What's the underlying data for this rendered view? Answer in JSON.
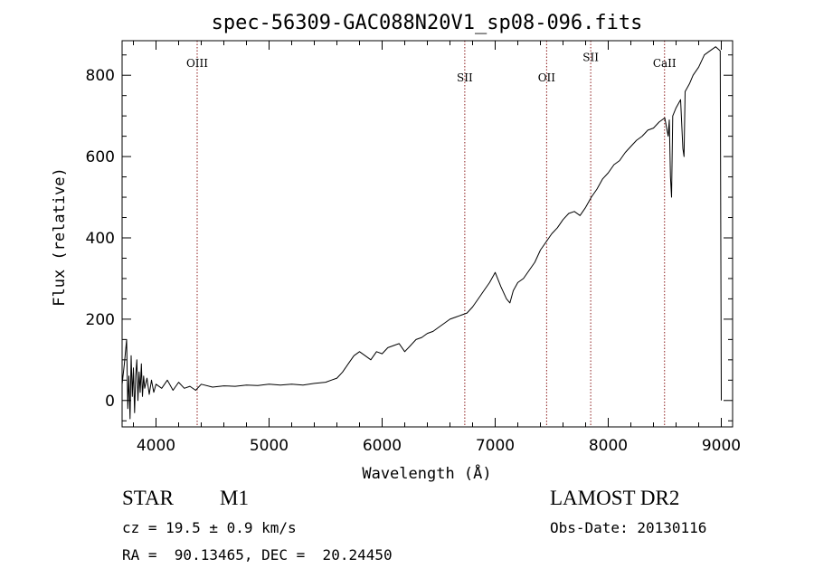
{
  "chart_data": {
    "type": "line",
    "title": "spec-56309-GAC088N20V1_sp08-096.fits",
    "xlabel": "Wavelength (Å)",
    "ylabel": "Flux (relative)",
    "xlim": [
      3700,
      9100
    ],
    "ylim": [
      -65,
      885
    ],
    "x_ticks": [
      4000,
      5000,
      6000,
      7000,
      8000,
      9000
    ],
    "y_ticks": [
      0,
      200,
      400,
      600,
      800
    ],
    "grid": false,
    "series": [
      {
        "color": "#000000",
        "points": [
          [
            3700,
            40
          ],
          [
            3720,
            90
          ],
          [
            3740,
            150
          ],
          [
            3750,
            -20
          ],
          [
            3760,
            60
          ],
          [
            3770,
            -45
          ],
          [
            3780,
            110
          ],
          [
            3790,
            10
          ],
          [
            3800,
            80
          ],
          [
            3810,
            -30
          ],
          [
            3820,
            60
          ],
          [
            3830,
            100
          ],
          [
            3840,
            0
          ],
          [
            3850,
            70
          ],
          [
            3860,
            20
          ],
          [
            3870,
            90
          ],
          [
            3880,
            10
          ],
          [
            3890,
            60
          ],
          [
            3900,
            30
          ],
          [
            3920,
            55
          ],
          [
            3940,
            15
          ],
          [
            3960,
            50
          ],
          [
            3980,
            20
          ],
          [
            4000,
            40
          ],
          [
            4050,
            30
          ],
          [
            4100,
            50
          ],
          [
            4150,
            25
          ],
          [
            4200,
            45
          ],
          [
            4250,
            30
          ],
          [
            4300,
            35
          ],
          [
            4350,
            25
          ],
          [
            4400,
            40
          ],
          [
            4500,
            33
          ],
          [
            4600,
            36
          ],
          [
            4700,
            35
          ],
          [
            4800,
            38
          ],
          [
            4900,
            37
          ],
          [
            5000,
            40
          ],
          [
            5100,
            38
          ],
          [
            5200,
            40
          ],
          [
            5300,
            38
          ],
          [
            5400,
            42
          ],
          [
            5500,
            45
          ],
          [
            5550,
            50
          ],
          [
            5600,
            55
          ],
          [
            5650,
            70
          ],
          [
            5700,
            90
          ],
          [
            5750,
            110
          ],
          [
            5800,
            120
          ],
          [
            5850,
            110
          ],
          [
            5900,
            100
          ],
          [
            5950,
            120
          ],
          [
            6000,
            115
          ],
          [
            6050,
            130
          ],
          [
            6100,
            135
          ],
          [
            6150,
            140
          ],
          [
            6200,
            120
          ],
          [
            6250,
            135
          ],
          [
            6300,
            150
          ],
          [
            6350,
            155
          ],
          [
            6400,
            165
          ],
          [
            6450,
            170
          ],
          [
            6500,
            180
          ],
          [
            6550,
            190
          ],
          [
            6600,
            200
          ],
          [
            6650,
            205
          ],
          [
            6700,
            210
          ],
          [
            6750,
            215
          ],
          [
            6800,
            230
          ],
          [
            6850,
            250
          ],
          [
            6900,
            270
          ],
          [
            6950,
            290
          ],
          [
            7000,
            315
          ],
          [
            7050,
            280
          ],
          [
            7100,
            250
          ],
          [
            7130,
            240
          ],
          [
            7160,
            270
          ],
          [
            7200,
            290
          ],
          [
            7250,
            300
          ],
          [
            7300,
            320
          ],
          [
            7350,
            340
          ],
          [
            7400,
            370
          ],
          [
            7450,
            390
          ],
          [
            7500,
            410
          ],
          [
            7550,
            425
          ],
          [
            7600,
            445
          ],
          [
            7650,
            460
          ],
          [
            7700,
            465
          ],
          [
            7750,
            455
          ],
          [
            7800,
            475
          ],
          [
            7850,
            500
          ],
          [
            7900,
            520
          ],
          [
            7950,
            545
          ],
          [
            8000,
            560
          ],
          [
            8050,
            580
          ],
          [
            8100,
            590
          ],
          [
            8150,
            610
          ],
          [
            8200,
            625
          ],
          [
            8250,
            640
          ],
          [
            8300,
            650
          ],
          [
            8350,
            665
          ],
          [
            8400,
            670
          ],
          [
            8450,
            685
          ],
          [
            8500,
            695
          ],
          [
            8530,
            650
          ],
          [
            8540,
            690
          ],
          [
            8550,
            550
          ],
          [
            8560,
            500
          ],
          [
            8570,
            700
          ],
          [
            8600,
            720
          ],
          [
            8640,
            740
          ],
          [
            8660,
            620
          ],
          [
            8670,
            600
          ],
          [
            8680,
            760
          ],
          [
            8720,
            780
          ],
          [
            8750,
            800
          ],
          [
            8800,
            820
          ],
          [
            8850,
            850
          ],
          [
            8900,
            860
          ],
          [
            8950,
            870
          ],
          [
            8990,
            860
          ],
          [
            9000,
            0
          ]
        ]
      }
    ],
    "line_markers": [
      {
        "label": "OIII",
        "x": 4364,
        "label_y": 820
      },
      {
        "label": "SII",
        "x": 6731,
        "label_y": 785
      },
      {
        "label": "OII",
        "x": 7455,
        "label_y": 785
      },
      {
        "label": "SII",
        "x": 7845,
        "label_y": 835
      },
      {
        "label": "CaII",
        "x": 8498,
        "label_y": 820
      }
    ],
    "marker_color": "#8b1a1a"
  },
  "info": {
    "object_class": "STAR",
    "subclass": "M1",
    "survey": "LAMOST DR2",
    "redshift": "cz = 19.5 ± 0.9 km/s",
    "obs_date": "Obs-Date: 20130116",
    "coords": "RA =  90.13465, DEC =  20.24450"
  }
}
